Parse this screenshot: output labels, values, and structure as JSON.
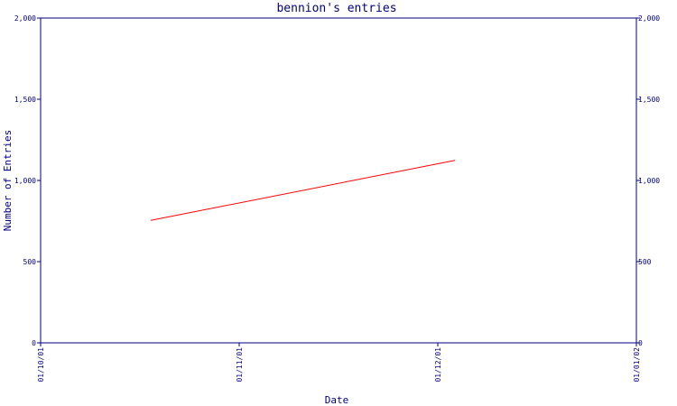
{
  "chart_data": {
    "type": "line",
    "title": "bennion's entries",
    "xlabel": "Date",
    "ylabel": "Number of Entries",
    "x_ticks": [
      "01/10/01",
      "01/11/01",
      "01/12/01",
      "01/01/02"
    ],
    "y_ticks": [
      "0",
      "500",
      "1,000",
      "1,500",
      "2,000"
    ],
    "ylim": [
      0,
      2000
    ],
    "xlim": [
      "2001-10-01",
      "2002-01-01"
    ],
    "y_axis_right_mirrored": true,
    "grid": false,
    "series": [
      {
        "color": "#ff0000",
        "points": [
          {
            "x": "2001-10-18",
            "y": 754
          },
          {
            "x": "2001-12-04",
            "y": 1124
          }
        ]
      }
    ]
  },
  "colors": {
    "axis": "#000080",
    "text": "#000080",
    "line": "#ff0000",
    "background": "#ffffff"
  }
}
